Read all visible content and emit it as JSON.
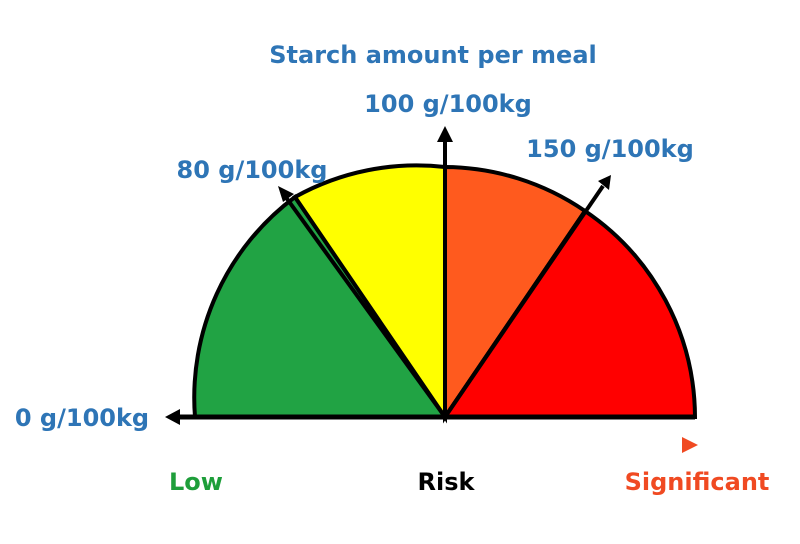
{
  "title": "Starch amount per meal",
  "thresholds": {
    "t0": "0 g/100kg",
    "t80": "80 g/100kg",
    "t100": "100 g/100kg",
    "t150": "150 g/100kg"
  },
  "scale": {
    "low": "Low",
    "risk": "Risk",
    "significant": "Significant"
  },
  "colors": {
    "label_blue": "#2E75B6",
    "green": "#21A344",
    "yellow": "#FFFF00",
    "orange": "#FF5A1E",
    "red": "#FF0000",
    "low_text": "#1E9E3A",
    "risk_text": "#000000",
    "significant_text": "#F04A22",
    "outline": "#000000"
  },
  "segments": [
    {
      "name": "green",
      "color": "#21A344"
    },
    {
      "name": "yellow",
      "color": "#FFFF00"
    },
    {
      "name": "orange",
      "color": "#FF5A1E"
    },
    {
      "name": "red",
      "color": "#FF0000"
    }
  ],
  "gradient_arrow": [
    "#1E9E3A",
    "#8DC63F",
    "#FFFF00",
    "#FFA500",
    "#F04A22"
  ]
}
